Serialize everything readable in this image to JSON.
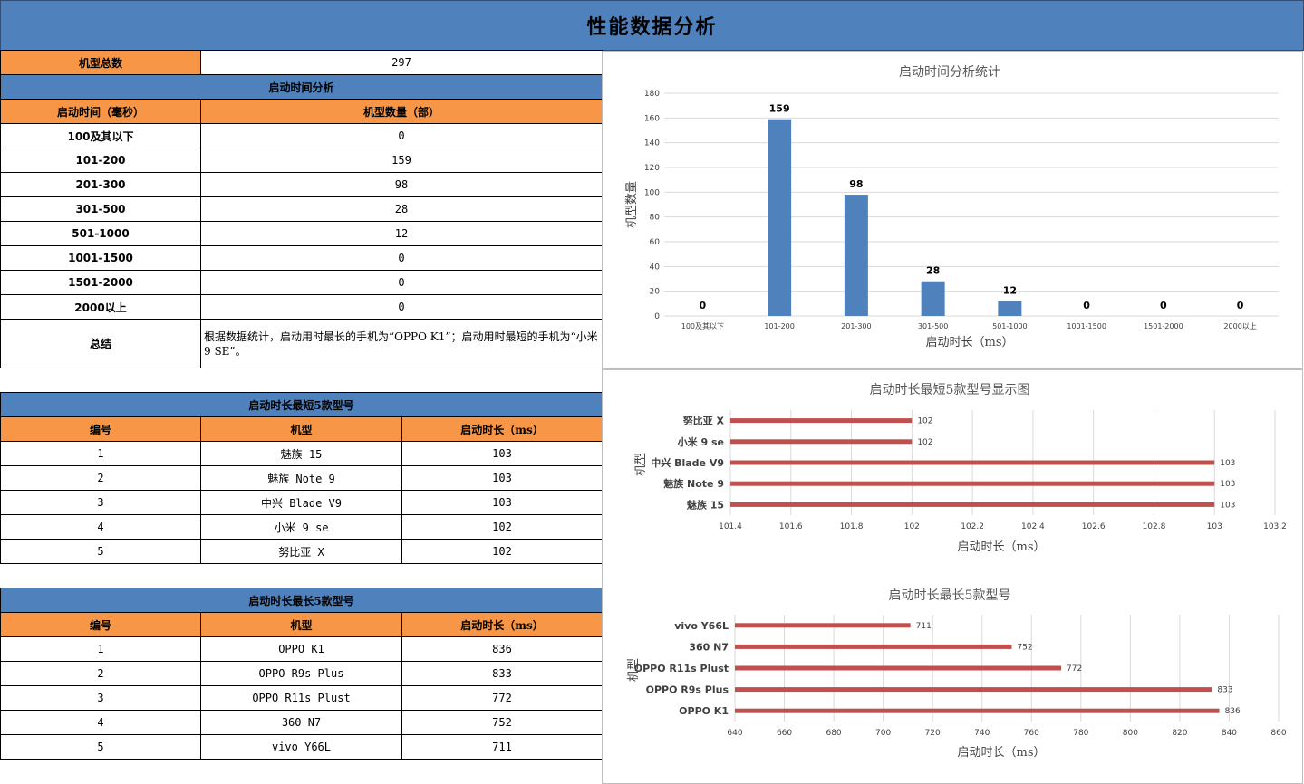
{
  "header": {
    "title": "性能数据分析"
  },
  "summary_row": {
    "label": "机型总数",
    "value": "297"
  },
  "startup_table": {
    "title": "启动时间分析",
    "headers": [
      "启动时间（毫秒）",
      "机型数量（部）"
    ],
    "rows": [
      {
        "range": "100及其以下",
        "count": "0"
      },
      {
        "range": "101-200",
        "count": "159"
      },
      {
        "range": "201-300",
        "count": "98"
      },
      {
        "range": "301-500",
        "count": "28"
      },
      {
        "range": "501-1000",
        "count": "12"
      },
      {
        "range": "1001-1500",
        "count": "0"
      },
      {
        "range": "1501-2000",
        "count": "0"
      },
      {
        "range": "2000以上",
        "count": "0"
      }
    ],
    "conclusion_label": "总结",
    "conclusion_text": "根据数据统计，启动用时最长的手机为“OPPO K1”；启动用时最短的手机为“小米 9 SE”。"
  },
  "shortest_table": {
    "title": "启动时长最短5款型号",
    "headers": [
      "编号",
      "机型",
      "启动时长（ms）"
    ],
    "rows": [
      {
        "no": "1",
        "model": "魅族 15",
        "time": "103"
      },
      {
        "no": "2",
        "model": "魅族 Note 9",
        "time": "103"
      },
      {
        "no": "3",
        "model": "中兴 Blade V9",
        "time": "103"
      },
      {
        "no": "4",
        "model": "小米 9 se",
        "time": "102"
      },
      {
        "no": "5",
        "model": "努比亚 X",
        "time": "102"
      }
    ]
  },
  "longest_table": {
    "title": "启动时长最长5款型号",
    "headers": [
      "编号",
      "机型",
      "启动时长（ms）"
    ],
    "rows": [
      {
        "no": "1",
        "model": "OPPO K1",
        "time": "836"
      },
      {
        "no": "2",
        "model": "OPPO R9s Plus",
        "time": "833"
      },
      {
        "no": "3",
        "model": "OPPO R11s Plust",
        "time": "772"
      },
      {
        "no": "4",
        "model": "360 N7",
        "time": "752"
      },
      {
        "no": "5",
        "model": "vivo Y66L",
        "time": "711"
      }
    ]
  },
  "colors": {
    "header_blue": "#4f81bd",
    "header_orange": "#f79646",
    "bar_blue": "#4f81bd",
    "bar_red": "#c0504d"
  },
  "chart_data": [
    {
      "type": "bar",
      "title": "启动时间分析统计",
      "xlabel": "启动时长（ms）",
      "ylabel": "机型数量",
      "categories": [
        "100及其以下",
        "101-200",
        "201-300",
        "301-500",
        "501-1000",
        "1001-1500",
        "1501-2000",
        "2000以上"
      ],
      "values": [
        0,
        159,
        98,
        28,
        12,
        0,
        0,
        0
      ],
      "ylim": [
        0,
        180
      ],
      "yticks": [
        "0",
        "20",
        "40",
        "60",
        "80",
        "100",
        "120",
        "140",
        "160",
        "180"
      ],
      "grid": true,
      "data_labels": true
    },
    {
      "type": "bar",
      "orientation": "horizontal",
      "title": "启动时长最短5款型号显示图",
      "xlabel": "启动时长（ms）",
      "ylabel": "机型",
      "categories": [
        "努比亚 X",
        "小米 9 se",
        "中兴 Blade V9",
        "魅族 Note 9",
        "魅族 15"
      ],
      "values": [
        102,
        102,
        103,
        103,
        103
      ],
      "xlim": [
        101.4,
        103.2
      ],
      "xticks": [
        "101.4",
        "101.6",
        "101.8",
        "102",
        "102.2",
        "102.4",
        "102.6",
        "102.8",
        "103",
        "103.2"
      ],
      "grid": true,
      "data_labels": true
    },
    {
      "type": "bar",
      "orientation": "horizontal",
      "title": "启动时长最长5款型号",
      "xlabel": "启动时长（ms）",
      "ylabel": "机型",
      "categories": [
        "vivo Y66L",
        "360 N7",
        "OPPO R11s Plust",
        "OPPO R9s Plus",
        "OPPO K1"
      ],
      "values": [
        711,
        752,
        772,
        833,
        836
      ],
      "xlim": [
        640,
        860
      ],
      "xticks": [
        "640",
        "660",
        "680",
        "700",
        "720",
        "740",
        "760",
        "780",
        "800",
        "820",
        "840",
        "860"
      ],
      "grid": true,
      "data_labels": true
    }
  ]
}
